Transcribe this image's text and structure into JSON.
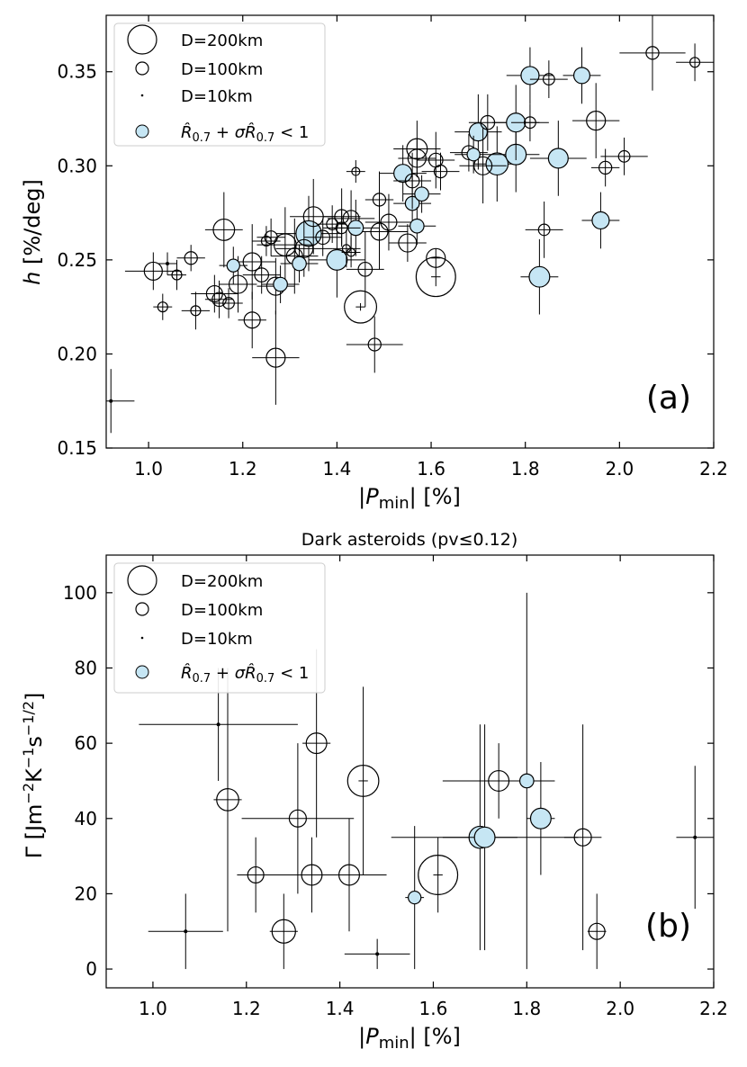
{
  "chart_data": [
    {
      "type": "scatter",
      "panel_label": "(a)",
      "xlabel": "|P_min| [%]",
      "ylabel": "h [%/deg]",
      "xlim": [
        0.91,
        2.2
      ],
      "ylim": [
        0.15,
        0.38
      ],
      "xticks": [
        1.0,
        1.2,
        1.4,
        1.6,
        1.8,
        2.0,
        2.2
      ],
      "xtick_labels": [
        "1.0",
        "1.2",
        "1.4",
        "1.6",
        "1.8",
        "2.0",
        "2.2"
      ],
      "yticks": [
        0.15,
        0.2,
        0.25,
        0.3,
        0.35
      ],
      "ytick_labels": [
        "0.15",
        "0.20",
        "0.25",
        "0.30",
        "0.35"
      ],
      "legend": {
        "position": "top-left",
        "entries": [
          "D=200km",
          "D=100km",
          "D=10km",
          "R̂0.7 + σR̂0.7 < 1"
        ]
      },
      "points": [
        {
          "x": 0.92,
          "y": 0.175,
          "d": 10,
          "filled": false,
          "xerr": 0.05,
          "yerr": 0.017
        },
        {
          "x": 1.01,
          "y": 0.244,
          "d": 100,
          "filled": false,
          "xerr": 0.06,
          "yerr": 0.01
        },
        {
          "x": 1.03,
          "y": 0.225,
          "d": 30,
          "filled": false,
          "xerr": 0.02,
          "yerr": 0.007
        },
        {
          "x": 1.04,
          "y": 0.248,
          "d": 10,
          "filled": false,
          "xerr": 0.02,
          "yerr": 0.006
        },
        {
          "x": 1.06,
          "y": 0.242,
          "d": 30,
          "filled": false,
          "xerr": 0.02,
          "yerr": 0.008
        },
        {
          "x": 1.09,
          "y": 0.251,
          "d": 50,
          "filled": false,
          "xerr": 0.03,
          "yerr": 0.007
        },
        {
          "x": 1.1,
          "y": 0.223,
          "d": 30,
          "filled": false,
          "xerr": 0.03,
          "yerr": 0.01
        },
        {
          "x": 1.14,
          "y": 0.232,
          "d": 80,
          "filled": false,
          "xerr": 0.05,
          "yerr": 0.01
        },
        {
          "x": 1.16,
          "y": 0.266,
          "d": 140,
          "filled": false,
          "xerr": 0.04,
          "yerr": 0.02
        },
        {
          "x": 1.15,
          "y": 0.229,
          "d": 60,
          "filled": false,
          "xerr": 0.03,
          "yerr": 0.01
        },
        {
          "x": 1.17,
          "y": 0.227,
          "d": 40,
          "filled": false,
          "xerr": 0.03,
          "yerr": 0.008
        },
        {
          "x": 1.18,
          "y": 0.247,
          "d": 50,
          "filled": true,
          "xerr": 0.03,
          "yerr": 0.01
        },
        {
          "x": 1.19,
          "y": 0.237,
          "d": 100,
          "filled": false,
          "xerr": 0.04,
          "yerr": 0.015
        },
        {
          "x": 1.22,
          "y": 0.249,
          "d": 100,
          "filled": false,
          "xerr": 0.05,
          "yerr": 0.02
        },
        {
          "x": 1.22,
          "y": 0.218,
          "d": 80,
          "filled": false,
          "xerr": 0.03,
          "yerr": 0.015
        },
        {
          "x": 1.24,
          "y": 0.242,
          "d": 60,
          "filled": false,
          "xerr": 0.04,
          "yerr": 0.01
        },
        {
          "x": 1.25,
          "y": 0.26,
          "d": 30,
          "filled": false,
          "xerr": 0.03,
          "yerr": 0.008
        },
        {
          "x": 1.26,
          "y": 0.262,
          "d": 50,
          "filled": false,
          "xerr": 0.03,
          "yerr": 0.01
        },
        {
          "x": 1.27,
          "y": 0.236,
          "d": 100,
          "filled": false,
          "xerr": 0.04,
          "yerr": 0.015
        },
        {
          "x": 1.28,
          "y": 0.237,
          "d": 60,
          "filled": true,
          "xerr": 0.04,
          "yerr": 0.01
        },
        {
          "x": 1.27,
          "y": 0.198,
          "d": 110,
          "filled": false,
          "xerr": 0.05,
          "yerr": 0.025
        },
        {
          "x": 1.29,
          "y": 0.258,
          "d": 150,
          "filled": false,
          "xerr": 0.06,
          "yerr": 0.02
        },
        {
          "x": 1.31,
          "y": 0.252,
          "d": 80,
          "filled": false,
          "xerr": 0.05,
          "yerr": 0.02
        },
        {
          "x": 1.33,
          "y": 0.256,
          "d": 100,
          "filled": false,
          "xerr": 0.06,
          "yerr": 0.015
        },
        {
          "x": 1.32,
          "y": 0.248,
          "d": 60,
          "filled": true,
          "xerr": 0.04,
          "yerr": 0.01
        },
        {
          "x": 1.34,
          "y": 0.264,
          "d": 200,
          "filled": true,
          "xerr": 0.07,
          "yerr": 0.02
        },
        {
          "x": 1.35,
          "y": 0.273,
          "d": 120,
          "filled": false,
          "xerr": 0.05,
          "yerr": 0.02
        },
        {
          "x": 1.37,
          "y": 0.262,
          "d": 60,
          "filled": false,
          "xerr": 0.04,
          "yerr": 0.01
        },
        {
          "x": 1.39,
          "y": 0.269,
          "d": 40,
          "filled": false,
          "xerr": 0.03,
          "yerr": 0.01
        },
        {
          "x": 1.4,
          "y": 0.25,
          "d": 130,
          "filled": true,
          "xerr": 0.06,
          "yerr": 0.02
        },
        {
          "x": 1.41,
          "y": 0.267,
          "d": 40,
          "filled": false,
          "xerr": 0.04,
          "yerr": 0.01
        },
        {
          "x": 1.41,
          "y": 0.273,
          "d": 60,
          "filled": false,
          "xerr": 0.04,
          "yerr": 0.015
        },
        {
          "x": 1.42,
          "y": 0.256,
          "d": 20,
          "filled": false,
          "xerr": 0.03,
          "yerr": 0.01
        },
        {
          "x": 1.43,
          "y": 0.254,
          "d": 20,
          "filled": false,
          "xerr": 0.02,
          "yerr": 0.008
        },
        {
          "x": 1.43,
          "y": 0.272,
          "d": 80,
          "filled": false,
          "xerr": 0.05,
          "yerr": 0.015
        },
        {
          "x": 1.44,
          "y": 0.267,
          "d": 70,
          "filled": true,
          "xerr": 0.05,
          "yerr": 0.015
        },
        {
          "x": 1.45,
          "y": 0.225,
          "d": 320,
          "filled": false,
          "xerr": 0.01,
          "yerr": 0.002
        },
        {
          "x": 1.44,
          "y": 0.297,
          "d": 20,
          "filled": false,
          "xerr": 0.02,
          "yerr": 0.006
        },
        {
          "x": 1.46,
          "y": 0.245,
          "d": 60,
          "filled": false,
          "xerr": 0.04,
          "yerr": 0.02
        },
        {
          "x": 1.48,
          "y": 0.205,
          "d": 50,
          "filled": false,
          "xerr": 0.06,
          "yerr": 0.015
        },
        {
          "x": 1.49,
          "y": 0.282,
          "d": 50,
          "filled": false,
          "xerr": 0.03,
          "yerr": 0.015
        },
        {
          "x": 1.49,
          "y": 0.265,
          "d": 90,
          "filled": false,
          "xerr": 0.06,
          "yerr": 0.02
        },
        {
          "x": 1.51,
          "y": 0.27,
          "d": 80,
          "filled": false,
          "xerr": 0.05,
          "yerr": 0.015
        },
        {
          "x": 1.54,
          "y": 0.296,
          "d": 100,
          "filled": true,
          "xerr": 0.05,
          "yerr": 0.015
        },
        {
          "x": 1.55,
          "y": 0.259,
          "d": 100,
          "filled": false,
          "xerr": 0.04,
          "yerr": 0.01
        },
        {
          "x": 1.56,
          "y": 0.28,
          "d": 60,
          "filled": true,
          "xerr": 0.04,
          "yerr": 0.015
        },
        {
          "x": 1.56,
          "y": 0.292,
          "d": 60,
          "filled": false,
          "xerr": 0.04,
          "yerr": 0.015
        },
        {
          "x": 1.57,
          "y": 0.309,
          "d": 130,
          "filled": false,
          "xerr": 0.05,
          "yerr": 0.015
        },
        {
          "x": 1.57,
          "y": 0.304,
          "d": 100,
          "filled": false,
          "xerr": 0.04,
          "yerr": 0.01
        },
        {
          "x": 1.57,
          "y": 0.268,
          "d": 60,
          "filled": true,
          "xerr": 0.04,
          "yerr": 0.01
        },
        {
          "x": 1.58,
          "y": 0.285,
          "d": 60,
          "filled": true,
          "xerr": 0.04,
          "yerr": 0.01
        },
        {
          "x": 1.61,
          "y": 0.241,
          "d": 480,
          "filled": false,
          "xerr": 0.01,
          "yerr": 0.005
        },
        {
          "x": 1.61,
          "y": 0.251,
          "d": 110,
          "filled": false,
          "xerr": 0.01,
          "yerr": 0.005
        },
        {
          "x": 1.61,
          "y": 0.303,
          "d": 60,
          "filled": false,
          "xerr": 0.04,
          "yerr": 0.015
        },
        {
          "x": 1.62,
          "y": 0.297,
          "d": 50,
          "filled": false,
          "xerr": 0.04,
          "yerr": 0.01
        },
        {
          "x": 1.68,
          "y": 0.307,
          "d": 60,
          "filled": false,
          "xerr": 0.04,
          "yerr": 0.01
        },
        {
          "x": 1.69,
          "y": 0.306,
          "d": 50,
          "filled": true,
          "xerr": 0.04,
          "yerr": 0.01
        },
        {
          "x": 1.7,
          "y": 0.318,
          "d": 100,
          "filled": true,
          "xerr": 0.05,
          "yerr": 0.02
        },
        {
          "x": 1.71,
          "y": 0.3,
          "d": 100,
          "filled": false,
          "xerr": 0.05,
          "yerr": 0.02
        },
        {
          "x": 1.72,
          "y": 0.323,
          "d": 60,
          "filled": false,
          "xerr": 0.04,
          "yerr": 0.015
        },
        {
          "x": 1.74,
          "y": 0.301,
          "d": 150,
          "filled": true,
          "xerr": 0.05,
          "yerr": 0.02
        },
        {
          "x": 1.78,
          "y": 0.323,
          "d": 110,
          "filled": true,
          "xerr": 0.05,
          "yerr": 0.02
        },
        {
          "x": 1.78,
          "y": 0.306,
          "d": 130,
          "filled": true,
          "xerr": 0.05,
          "yerr": 0.02
        },
        {
          "x": 1.81,
          "y": 0.348,
          "d": 100,
          "filled": true,
          "xerr": 0.05,
          "yerr": 0.015
        },
        {
          "x": 1.81,
          "y": 0.323,
          "d": 40,
          "filled": false,
          "xerr": 0.04,
          "yerr": 0.01
        },
        {
          "x": 1.83,
          "y": 0.241,
          "d": 130,
          "filled": true,
          "xerr": 0.04,
          "yerr": 0.02
        },
        {
          "x": 1.84,
          "y": 0.266,
          "d": 40,
          "filled": false,
          "xerr": 0.04,
          "yerr": 0.015
        },
        {
          "x": 1.85,
          "y": 0.346,
          "d": 40,
          "filled": false,
          "xerr": 0.04,
          "yerr": 0.01
        },
        {
          "x": 1.87,
          "y": 0.304,
          "d": 120,
          "filled": true,
          "xerr": 0.06,
          "yerr": 0.02
        },
        {
          "x": 1.92,
          "y": 0.348,
          "d": 80,
          "filled": true,
          "xerr": 0.04,
          "yerr": 0.015
        },
        {
          "x": 1.95,
          "y": 0.324,
          "d": 110,
          "filled": false,
          "xerr": 0.05,
          "yerr": 0.02
        },
        {
          "x": 1.96,
          "y": 0.271,
          "d": 90,
          "filled": true,
          "xerr": 0.04,
          "yerr": 0.015
        },
        {
          "x": 1.97,
          "y": 0.299,
          "d": 50,
          "filled": false,
          "xerr": 0.03,
          "yerr": 0.01
        },
        {
          "x": 2.01,
          "y": 0.305,
          "d": 40,
          "filled": false,
          "xerr": 0.05,
          "yerr": 0.01
        },
        {
          "x": 2.07,
          "y": 0.36,
          "d": 50,
          "filled": false,
          "xerr": 0.07,
          "yerr": 0.02
        },
        {
          "x": 2.16,
          "y": 0.355,
          "d": 30,
          "filled": false,
          "xerr": 0.04,
          "yerr": 0.01
        }
      ]
    },
    {
      "type": "scatter",
      "panel_label": "(b)",
      "title": "Dark asteroids (pv≤0.12)",
      "xlabel": "|P_min| [%]",
      "ylabel": "Γ [Jm⁻²K⁻¹s⁻¹ᐟ²]",
      "xlim": [
        0.9,
        2.2
      ],
      "ylim": [
        -5,
        110
      ],
      "xticks": [
        1.0,
        1.2,
        1.4,
        1.6,
        1.8,
        2.0,
        2.2
      ],
      "xtick_labels": [
        "1.0",
        "1.2",
        "1.4",
        "1.6",
        "1.8",
        "2.0",
        "2.2"
      ],
      "yticks": [
        0,
        20,
        40,
        60,
        80,
        100
      ],
      "ytick_labels": [
        "0",
        "20",
        "40",
        "60",
        "80",
        "100"
      ],
      "legend": {
        "position": "top-left",
        "entries": [
          "D=200km",
          "D=100km",
          "D=10km",
          "R̂0.7 + σR̂0.7 < 1"
        ]
      },
      "points": [
        {
          "x": 1.07,
          "y": 10,
          "d": 10,
          "filled": false,
          "xerr": 0.08,
          "yerr": 10
        },
        {
          "x": 1.14,
          "y": 65,
          "d": 10,
          "filled": false,
          "xerr": 0.17,
          "yerr": 15
        },
        {
          "x": 1.16,
          "y": 45,
          "d": 150,
          "filled": false,
          "xerr": 0.03,
          "yerr": 35
        },
        {
          "x": 1.22,
          "y": 25,
          "d": 80,
          "filled": false,
          "xerr": 0.04,
          "yerr": 10
        },
        {
          "x": 1.28,
          "y": 10,
          "d": 170,
          "filled": false,
          "xerr": 0.03,
          "yerr": 10
        },
        {
          "x": 1.31,
          "y": 40,
          "d": 90,
          "filled": false,
          "xerr": 0.12,
          "yerr": 20
        },
        {
          "x": 1.34,
          "y": 25,
          "d": 130,
          "filled": false,
          "xerr": 0.1,
          "yerr": 10
        },
        {
          "x": 1.35,
          "y": 60,
          "d": 130,
          "filled": false,
          "xerr": 0.03,
          "yerr": 25
        },
        {
          "x": 1.42,
          "y": 25,
          "d": 130,
          "filled": false,
          "xerr": 0.08,
          "yerr": 15
        },
        {
          "x": 1.45,
          "y": 50,
          "d": 300,
          "filled": false,
          "xerr": 0.01,
          "yerr": 25
        },
        {
          "x": 1.48,
          "y": 4,
          "d": 10,
          "filled": false,
          "xerr": 0.07,
          "yerr": 4
        },
        {
          "x": 1.56,
          "y": 19,
          "d": 50,
          "filled": true,
          "xerr": 0.02,
          "yerr": 19
        },
        {
          "x": 1.61,
          "y": 25,
          "d": 480,
          "filled": false,
          "xerr": 0.01,
          "yerr": 10
        },
        {
          "x": 1.7,
          "y": 35,
          "d": 150,
          "filled": true,
          "xerr": 0.08,
          "yerr": 30
        },
        {
          "x": 1.71,
          "y": 35,
          "d": 130,
          "filled": true,
          "xerr": 0.2,
          "yerr": 30
        },
        {
          "x": 1.74,
          "y": 50,
          "d": 130,
          "filled": false,
          "xerr": 0.12,
          "yerr": 10
        },
        {
          "x": 1.8,
          "y": 50,
          "d": 60,
          "filled": true,
          "xerr": 0.03,
          "yerr": 50
        },
        {
          "x": 1.83,
          "y": 40,
          "d": 130,
          "filled": true,
          "xerr": 0.03,
          "yerr": 15
        },
        {
          "x": 1.92,
          "y": 35,
          "d": 90,
          "filled": false,
          "xerr": 0.04,
          "yerr": 30
        },
        {
          "x": 1.95,
          "y": 10,
          "d": 80,
          "filled": false,
          "xerr": 0.02,
          "yerr": 10
        },
        {
          "x": 2.16,
          "y": 35,
          "d": 10,
          "filled": false,
          "xerr": 0.04,
          "yerr": 19
        }
      ]
    }
  ],
  "colors": {
    "filled_marker": "#c6e6f4",
    "line": "#000000"
  }
}
